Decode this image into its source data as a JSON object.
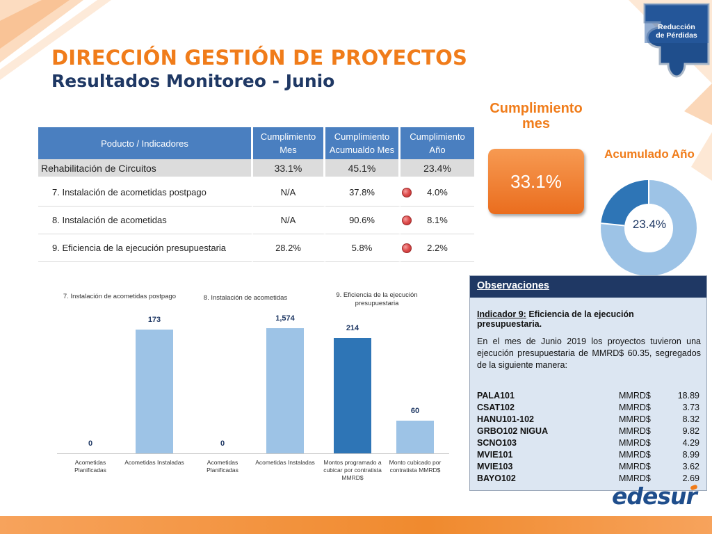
{
  "header": {
    "title": "DIRECCIÓN GESTIÓN DE PROYECTOS",
    "subtitle": "Resultados Monitoreo - Junio"
  },
  "logo": {
    "line1": "Reducción",
    "line2": "de Pérdidas"
  },
  "table": {
    "headers": [
      "Poducto / Indicadores",
      "Cumplimiento Mes",
      "Cumplimiento Acumualdo Mes",
      "Cumplimiento Año"
    ],
    "group": {
      "label": "Rehabilitación de Circuitos",
      "mes": "33.1%",
      "acumulado": "45.1%",
      "anio": "23.4%"
    },
    "rows": [
      {
        "label": "7. Instalación de acometidas postpago",
        "mes": "N/A",
        "acumulado": "37.8%",
        "anio": "4.0%",
        "status_color": "#e05050"
      },
      {
        "label": "8. Instalación de acometidas",
        "mes": "N/A",
        "acumulado": "90.6%",
        "anio": "8.1%",
        "status_color": "#e05050"
      },
      {
        "label": "9. Eficiencia de la ejecución presupuestaria",
        "mes": "28.2%",
        "acumulado": "5.8%",
        "anio": "2.2%",
        "status_color": "#e05050"
      }
    ]
  },
  "kpi": {
    "label": "Cumplimiento mes",
    "value": "33.1%"
  },
  "donut": {
    "label": "Acumulado Año",
    "value_text": "23.4%",
    "value": 23.4,
    "colors": {
      "filled": "#2e75b6",
      "remaining": "#9dc3e6"
    }
  },
  "chart_data": [
    {
      "type": "bar",
      "title": "7. Instalación de acometidas postpago",
      "categories": [
        "Acometidas Planificadas",
        "Acometidas Instaladas"
      ],
      "values": [
        0,
        173
      ],
      "value_labels": [
        "0",
        "173"
      ],
      "colors": [
        "#9dc3e6",
        "#9dc3e6"
      ]
    },
    {
      "type": "bar",
      "title": "8. Instalación de acometidas",
      "categories": [
        "Acometidas Planificadas",
        "Acometidas Instaladas"
      ],
      "values": [
        0,
        1574
      ],
      "value_labels": [
        "0",
        "1,574"
      ],
      "colors": [
        "#9dc3e6",
        "#9dc3e6"
      ]
    },
    {
      "type": "bar",
      "title": "9. Eficiencia de la ejecución presupuestaria",
      "categories": [
        "Montos programado a cubicar por contratista MMRD$",
        "Monto cubicado por contratista MMRD$"
      ],
      "values": [
        214,
        60
      ],
      "value_labels": [
        "214",
        "60"
      ],
      "colors": [
        "#2e75b6",
        "#9dc3e6"
      ]
    }
  ],
  "observaciones": {
    "heading": "Observaciones",
    "indicator_prefix": "Indicador 9:",
    "indicator_name": " Eficiencia de la ejecución presupuestaria.",
    "text": "En el mes de Junio 2019 los proyectos tuvieron una ejecución presupuestaria de MMRD$ 60.35, segregados de la siguiente manera:",
    "items": [
      {
        "code": "PALA101",
        "unit": "MMRD$",
        "amount": "18.89"
      },
      {
        "code": "CSAT102",
        "unit": "MMRD$",
        "amount": "3.73"
      },
      {
        "code": "HANU101-102",
        "unit": "MMRD$",
        "amount": "8.32"
      },
      {
        "code": "GRBO102 NIGUA",
        "unit": "MMRD$",
        "amount": "9.82"
      },
      {
        "code": "SCNO103",
        "unit": "MMRD$",
        "amount": "4.29"
      },
      {
        "code": "MVIE101",
        "unit": "MMRD$",
        "amount": "8.99"
      },
      {
        "code": "MVIE103",
        "unit": "MMRD$",
        "amount": "3.62"
      },
      {
        "code": "BAYO102",
        "unit": "MMRD$",
        "amount": "2.69"
      }
    ]
  },
  "brand": {
    "name": "edesur"
  },
  "theme": {
    "accent": "#f07c1a",
    "navy": "#1f3864",
    "table_header": "#4a7fc0"
  }
}
